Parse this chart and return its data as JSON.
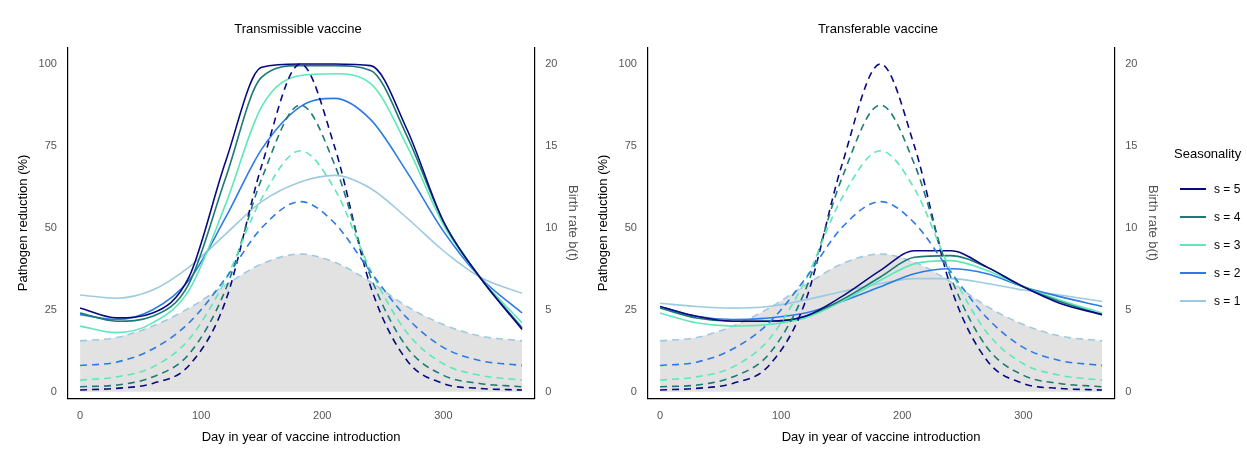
{
  "chart_data": [
    {
      "type": "line",
      "title": "Transmissible vaccine",
      "xlabel": "Day in year of vaccine introduction",
      "ylabel": "Pathogen reduction (%)",
      "y2label": "Birth rate b(t)",
      "x": [
        0,
        30,
        60,
        90,
        120,
        150,
        182,
        210,
        240,
        270,
        300,
        330,
        365
      ],
      "xlim": [
        -10,
        375
      ],
      "xticks": [
        0,
        100,
        200,
        300
      ],
      "ylim": [
        -2,
        105
      ],
      "yticks": [
        0,
        25,
        50,
        75,
        100
      ],
      "y2lim": [
        -0.4,
        21
      ],
      "y2ticks": [
        0,
        5,
        10,
        15,
        20
      ],
      "grid": false,
      "legend": false,
      "series": [
        {
          "type": "area",
          "axis": "y2",
          "line_style": "dashed",
          "color": "#9ecae1",
          "values": [
            3.1,
            3.3,
            4.0,
            5.1,
            6.5,
            7.8,
            8.4,
            7.9,
            6.7,
            5.2,
            4.1,
            3.4,
            3.1
          ]
        },
        {
          "type": "line",
          "axis": "y2",
          "line_style": "dashed",
          "color": "#2c7be5",
          "values": [
            1.6,
            1.8,
            2.6,
            4.2,
            6.9,
            10.0,
            11.6,
            10.3,
            7.3,
            4.5,
            2.7,
            1.9,
            1.6
          ]
        },
        {
          "type": "line",
          "axis": "y2",
          "line_style": "dashed",
          "color": "#5ee8b8",
          "values": [
            0.7,
            0.9,
            1.5,
            3.2,
            6.8,
            11.8,
            14.7,
            12.4,
            7.4,
            3.6,
            1.7,
            1.0,
            0.7
          ]
        },
        {
          "type": "line",
          "axis": "y2",
          "line_style": "dashed",
          "color": "#1b7a73",
          "values": [
            0.3,
            0.4,
            0.9,
            2.3,
            6.2,
            13.0,
            17.5,
            13.9,
            7.0,
            2.7,
            1.0,
            0.5,
            0.3
          ]
        },
        {
          "type": "line",
          "axis": "y2",
          "line_style": "dashed",
          "color": "#0a0a80",
          "values": [
            0.1,
            0.2,
            0.5,
            1.6,
            5.5,
            13.8,
            20.0,
            15.0,
            6.4,
            1.9,
            0.5,
            0.2,
            0.1
          ]
        },
        {
          "type": "line",
          "color": "#0a0a80",
          "values": [
            25.5,
            22.5,
            24,
            35,
            70,
            99,
            100,
            100,
            99.5,
            80,
            52,
            35,
            19
          ]
        },
        {
          "type": "line",
          "color": "#1b7a73",
          "values": [
            24,
            21.5,
            23,
            33,
            65,
            96,
            99.5,
            99.5,
            98,
            78,
            52,
            35,
            19.5
          ]
        },
        {
          "type": "line",
          "color": "#5ee8b8",
          "values": [
            20,
            18,
            21,
            31,
            57,
            87,
            96.5,
            97,
            94,
            75,
            51,
            35,
            21
          ]
        },
        {
          "type": "line",
          "color": "#2c7be5",
          "values": [
            23.5,
            22,
            25,
            34,
            53,
            74,
            87,
            89.5,
            83,
            67,
            49,
            35,
            24
          ]
        },
        {
          "type": "line",
          "color": "#9ecae1",
          "values": [
            29.5,
            28.5,
            31,
            38,
            48,
            58,
            64,
            66,
            62,
            53,
            43,
            35,
            30
          ]
        }
      ]
    },
    {
      "type": "line",
      "title": "Transferable vaccine",
      "xlabel": "Day in year of vaccine introduction",
      "ylabel": "Pathogen reduction (%)",
      "y2label": "Birth rate b(t)",
      "legend_title": "Seasonality",
      "x": [
        0,
        30,
        60,
        90,
        120,
        150,
        182,
        210,
        240,
        270,
        300,
        330,
        365
      ],
      "xlim": [
        -10,
        375
      ],
      "xticks": [
        0,
        100,
        200,
        300
      ],
      "ylim": [
        -2,
        105
      ],
      "yticks": [
        0,
        25,
        50,
        75,
        100
      ],
      "y2lim": [
        -0.4,
        21
      ],
      "y2ticks": [
        0,
        5,
        10,
        15,
        20
      ],
      "grid": false,
      "legend": "right",
      "series": [
        {
          "type": "area",
          "axis": "y2",
          "line_style": "dashed",
          "color": "#9ecae1",
          "values": [
            3.1,
            3.3,
            4.0,
            5.1,
            6.5,
            7.8,
            8.4,
            7.9,
            6.7,
            5.2,
            4.1,
            3.4,
            3.1
          ]
        },
        {
          "type": "line",
          "axis": "y2",
          "line_style": "dashed",
          "color": "#2c7be5",
          "values": [
            1.6,
            1.8,
            2.6,
            4.2,
            6.9,
            10.0,
            11.6,
            10.3,
            7.3,
            4.5,
            2.7,
            1.9,
            1.6
          ]
        },
        {
          "type": "line",
          "axis": "y2",
          "line_style": "dashed",
          "color": "#5ee8b8",
          "values": [
            0.7,
            0.9,
            1.5,
            3.2,
            6.8,
            11.8,
            14.7,
            12.4,
            7.4,
            3.6,
            1.7,
            1.0,
            0.7
          ]
        },
        {
          "type": "line",
          "axis": "y2",
          "line_style": "dashed",
          "color": "#1b7a73",
          "values": [
            0.3,
            0.4,
            0.9,
            2.3,
            6.2,
            13.0,
            17.5,
            13.9,
            7.0,
            2.7,
            1.0,
            0.5,
            0.3
          ]
        },
        {
          "type": "line",
          "axis": "y2",
          "line_style": "dashed",
          "color": "#0a0a80",
          "values": [
            0.1,
            0.2,
            0.5,
            1.6,
            5.5,
            13.8,
            20.0,
            15.0,
            6.4,
            1.9,
            0.5,
            0.2,
            0.1
          ]
        },
        {
          "type": "line",
          "name": "s = 5",
          "color": "#0a0a80",
          "values": [
            26,
            23,
            21.5,
            21.5,
            23,
            29,
            37,
            43,
            43,
            38,
            32,
            27,
            23.5
          ]
        },
        {
          "type": "line",
          "name": "s = 4",
          "color": "#1b7a73",
          "values": [
            25.5,
            22.5,
            21.5,
            21.5,
            23,
            28,
            35,
            41,
            41.5,
            38,
            32,
            27.5,
            23.5
          ]
        },
        {
          "type": "line",
          "name": "s = 3",
          "color": "#5ee8b8",
          "values": [
            24,
            21,
            20,
            20.5,
            22.5,
            27.5,
            34,
            39,
            40,
            37,
            32,
            28,
            24
          ]
        },
        {
          "type": "line",
          "name": "s = 2",
          "color": "#2c7be5",
          "values": [
            26,
            23,
            22,
            22.5,
            24,
            27.5,
            32,
            36,
            37.5,
            36,
            32,
            29,
            26
          ]
        },
        {
          "type": "line",
          "name": "s = 1",
          "color": "#9ecae1",
          "values": [
            27,
            26,
            25.5,
            26,
            28,
            30.5,
            33,
            34.5,
            34.5,
            33,
            31,
            29.5,
            27.5
          ]
        }
      ]
    }
  ]
}
